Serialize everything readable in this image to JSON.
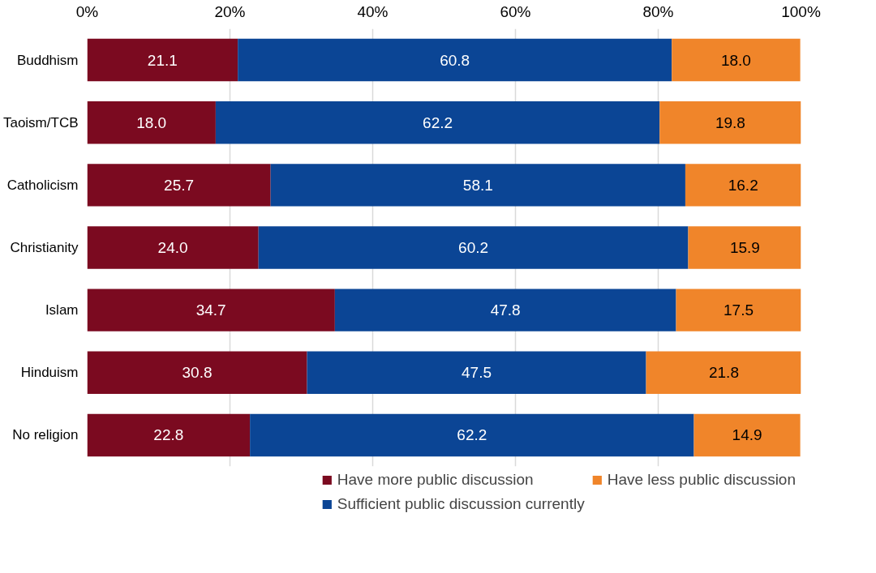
{
  "chart_data": {
    "type": "bar",
    "orientation": "horizontal",
    "stacked": true,
    "categories": [
      "Buddhism",
      "Taoism/TCB",
      "Catholicism",
      "Christianity",
      "Islam",
      "Hinduism",
      "No religion"
    ],
    "series": [
      {
        "name": "Have more public discussion",
        "color": "#7b0a20",
        "values": [
          21.1,
          18.0,
          25.7,
          24.0,
          34.7,
          30.8,
          22.8
        ],
        "value_labels": [
          "21.1",
          "18.0",
          "25.7",
          "24.0",
          "34.7",
          "30.8",
          "22.8"
        ]
      },
      {
        "name": "Sufficient public discussion currently",
        "color": "#0b4595",
        "values": [
          60.8,
          62.2,
          58.1,
          60.2,
          47.8,
          47.5,
          62.2
        ],
        "value_labels": [
          "60.8",
          "62.2",
          "58.1",
          "60.2",
          "47.8",
          "47.5",
          "62.2"
        ]
      },
      {
        "name": "Have less public discussion",
        "color": "#f0852a",
        "values": [
          18.0,
          19.8,
          16.2,
          15.9,
          17.5,
          21.8,
          14.9
        ],
        "value_labels": [
          "18.0",
          "19.8",
          "16.2",
          "15.9",
          "17.5",
          "21.8",
          "14.9"
        ]
      }
    ],
    "xlim": [
      0,
      100
    ],
    "xticks": [
      {
        "value": 0,
        "label": "0%"
      },
      {
        "value": 20,
        "label": "20%"
      },
      {
        "value": 40,
        "label": "40%"
      },
      {
        "value": 60,
        "label": "60%"
      },
      {
        "value": 80,
        "label": "80%"
      },
      {
        "value": 100,
        "label": "100%"
      }
    ],
    "grid": "x",
    "legend": "bottom"
  }
}
